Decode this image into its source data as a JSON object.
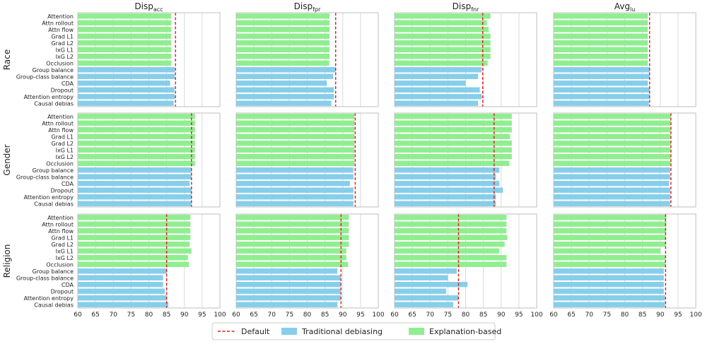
{
  "chart_data": {
    "type": "bar",
    "orientation": "horizontal",
    "xlim": [
      60,
      100
    ],
    "xticks": [
      60,
      65,
      70,
      75,
      80,
      85,
      90,
      95,
      100
    ],
    "grid": "vertical",
    "legend_placement": "bottom-center",
    "categories": [
      "Attention",
      "Attn rollout",
      "Attn flow",
      "Grad L1",
      "Grad L2",
      "IxG L1",
      "IxG L2",
      "Occlusion",
      "Group balance",
      "Group-class balance",
      "CDA",
      "Dropout",
      "Attention entropy",
      "Causal debias"
    ],
    "category_groups": [
      "explanation",
      "explanation",
      "explanation",
      "explanation",
      "explanation",
      "explanation",
      "explanation",
      "explanation",
      "traditional",
      "traditional",
      "traditional",
      "traditional",
      "traditional",
      "traditional"
    ],
    "columns": [
      {
        "base": "Disp",
        "sub": "acc"
      },
      {
        "base": "Disp",
        "sub": "fpr"
      },
      {
        "base": "Disp",
        "sub": "fnr"
      },
      {
        "base": "Avg",
        "sub": "lu"
      }
    ],
    "rows": [
      "Race",
      "Gender",
      "Religion"
    ],
    "legend": [
      {
        "label": "Default",
        "kind": "dashed-line",
        "color": "#e31a1c"
      },
      {
        "label": "Traditional debiasing",
        "kind": "patch",
        "color": "#87ceeb"
      },
      {
        "label": "Explanation-based",
        "kind": "patch",
        "color": "#90ee90"
      }
    ],
    "colors": {
      "traditional": "#87ceeb",
      "explanation": "#90ee90",
      "default": "#e31a1c"
    },
    "panels": [
      {
        "row": "Race",
        "column": "acc",
        "default": 87.5,
        "values": [
          86.3,
          86.3,
          86.3,
          86.3,
          86.3,
          86.3,
          86.3,
          86.3,
          87.3,
          87.3,
          86.0,
          87.2,
          87.3,
          87.0
        ]
      },
      {
        "row": "Race",
        "column": "fpr",
        "default": 88.0,
        "values": [
          86.3,
          86.3,
          86.3,
          86.3,
          86.3,
          86.3,
          86.3,
          86.2,
          88.0,
          87.3,
          85.5,
          87.5,
          87.5,
          86.8
        ]
      },
      {
        "row": "Race",
        "column": "fnr",
        "default": 84.8,
        "values": [
          87.0,
          86.0,
          86.5,
          87.0,
          87.0,
          87.0,
          87.0,
          86.2,
          84.5,
          83.5,
          80.0,
          84.0,
          84.5,
          83.5
        ]
      },
      {
        "row": "Race",
        "column": "lu",
        "default": 87.0,
        "values": [
          86.5,
          86.5,
          86.5,
          86.5,
          86.5,
          86.5,
          86.5,
          86.5,
          87.0,
          87.0,
          86.5,
          87.0,
          87.0,
          86.8
        ]
      },
      {
        "row": "Gender",
        "column": "acc",
        "default": 92.0,
        "values": [
          93.0,
          93.0,
          93.0,
          93.0,
          93.0,
          93.0,
          93.0,
          93.0,
          92.0,
          92.0,
          91.5,
          92.0,
          92.0,
          92.0
        ]
      },
      {
        "row": "Gender",
        "column": "fpr",
        "default": 93.5,
        "values": [
          93.3,
          93.3,
          93.3,
          93.3,
          93.3,
          93.3,
          93.3,
          93.3,
          93.0,
          93.0,
          92.0,
          93.0,
          93.0,
          93.0
        ]
      },
      {
        "row": "Gender",
        "column": "fnr",
        "default": 88.0,
        "values": [
          93.0,
          93.0,
          93.0,
          92.5,
          93.0,
          93.0,
          93.0,
          92.3,
          89.5,
          88.5,
          89.5,
          90.5,
          88.5,
          88.5
        ]
      },
      {
        "row": "Gender",
        "column": "lu",
        "default": 93.0,
        "values": [
          93.0,
          93.0,
          93.0,
          93.0,
          93.0,
          93.0,
          93.0,
          93.0,
          92.8,
          92.8,
          92.5,
          92.8,
          92.8,
          92.8
        ]
      },
      {
        "row": "Religion",
        "column": "acc",
        "default": 85.0,
        "values": [
          91.7,
          91.7,
          91.7,
          91.7,
          91.5,
          92.0,
          91.0,
          91.3,
          85.0,
          84.0,
          84.0,
          84.5,
          85.0,
          85.5
        ]
      },
      {
        "row": "Religion",
        "column": "fpr",
        "default": 89.5,
        "values": [
          91.7,
          91.7,
          91.7,
          91.7,
          91.7,
          91.0,
          91.0,
          91.5,
          88.5,
          89.5,
          89.5,
          89.5,
          89.5,
          88.5
        ]
      },
      {
        "row": "Religion",
        "column": "fnr",
        "default": 78.0,
        "values": [
          91.5,
          91.5,
          91.5,
          91.7,
          91.0,
          89.5,
          91.5,
          91.5,
          77.5,
          75.0,
          80.5,
          74.5,
          78.0,
          76.5
        ]
      },
      {
        "row": "Religion",
        "column": "lu",
        "default": 91.5,
        "values": [
          91.7,
          91.7,
          91.7,
          91.5,
          91.5,
          90.0,
          91.5,
          91.5,
          91.0,
          91.0,
          91.0,
          91.0,
          91.3,
          91.3
        ]
      }
    ]
  }
}
